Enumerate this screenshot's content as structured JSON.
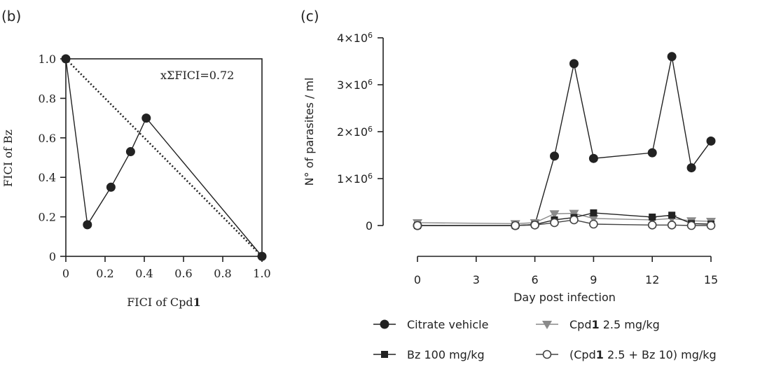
{
  "chart_data": [
    {
      "type": "line",
      "panel_label": "(b)",
      "xlabel_prefix": "FICI of Cpd",
      "xlabel_bold": "1",
      "ylabel": "FICI of Bz",
      "annotation": "xΣFICI=0.72",
      "xlim": [
        0,
        1.0
      ],
      "ylim": [
        0,
        1.0
      ],
      "x_ticks": [
        "0",
        "0.2",
        "0.4",
        "0.6",
        "0.8",
        "1.0"
      ],
      "y_ticks": [
        "0",
        "0.2",
        "0.4",
        "0.6",
        "0.8",
        "1.0"
      ],
      "series": [
        {
          "points": [
            [
              0,
              1.0
            ],
            [
              0.11,
              0.16
            ],
            [
              0.23,
              0.35
            ],
            [
              0.33,
              0.53
            ],
            [
              0.41,
              0.7
            ],
            [
              1.0,
              0.0
            ]
          ],
          "marker": "filled-circle",
          "style": "solid"
        },
        {
          "points": [
            [
              0,
              1.0
            ],
            [
              1.0,
              0.0
            ]
          ],
          "style": "dotted",
          "marker": "none"
        }
      ]
    },
    {
      "type": "line",
      "panel_label": "(c)",
      "xlabel": "Day post infection",
      "ylabel": "N° of parasites / ml",
      "xlim": [
        0,
        15
      ],
      "ylim": [
        0,
        4000000
      ],
      "x_ticks": [
        "0",
        "3",
        "6",
        "9",
        "12",
        "15"
      ],
      "y_ticks": [
        {
          "value": 0,
          "base": "0",
          "exp": ""
        },
        {
          "value": 1000000,
          "base": "1×10",
          "exp": "6"
        },
        {
          "value": 2000000,
          "base": "2×10",
          "exp": "6"
        },
        {
          "value": 3000000,
          "base": "3×10",
          "exp": "6"
        },
        {
          "value": 4000000,
          "base": "4×10",
          "exp": "6"
        }
      ],
      "legend_position": "bottom",
      "series": [
        {
          "legend": [
            {
              "text": "Citrate vehicle",
              "bold": false
            }
          ],
          "marker": "filled-circle",
          "color": "#222222",
          "x": [
            0,
            5,
            6,
            7,
            8,
            9,
            12,
            13,
            14,
            15
          ],
          "y": [
            0,
            0,
            20000,
            1480000,
            3450000,
            1430000,
            1550000,
            3600000,
            1230000,
            1800000
          ]
        },
        {
          "legend": [
            {
              "text": "Cpd",
              "bold": false
            },
            {
              "text": "1",
              "bold": true
            },
            {
              "text": " 2.5 mg/kg",
              "bold": false
            }
          ],
          "marker": "filled-triangle-down",
          "color": "#8a8a8a",
          "x": [
            0,
            5,
            6,
            7,
            8,
            9,
            12,
            13,
            14,
            15
          ],
          "y": [
            60000,
            40000,
            60000,
            250000,
            260000,
            150000,
            120000,
            150000,
            100000,
            90000
          ]
        },
        {
          "legend": [
            {
              "text": "Bz 100 mg/kg",
              "bold": false
            }
          ],
          "marker": "filled-square",
          "color": "#222222",
          "x": [
            0,
            5,
            6,
            7,
            8,
            9,
            12,
            13,
            14,
            15
          ],
          "y": [
            0,
            0,
            20000,
            120000,
            170000,
            270000,
            180000,
            220000,
            40000,
            30000
          ]
        },
        {
          "legend": [
            {
              "text": "(Cpd",
              "bold": false
            },
            {
              "text": "1",
              "bold": true
            },
            {
              "text": " 2.5 + Bz 10) mg/kg",
              "bold": false
            }
          ],
          "marker": "open-circle",
          "color": "#444444",
          "x": [
            0,
            5,
            6,
            7,
            8,
            9,
            12,
            13,
            14,
            15
          ],
          "y": [
            0,
            0,
            10000,
            60000,
            120000,
            30000,
            10000,
            10000,
            0,
            0
          ]
        }
      ]
    }
  ]
}
